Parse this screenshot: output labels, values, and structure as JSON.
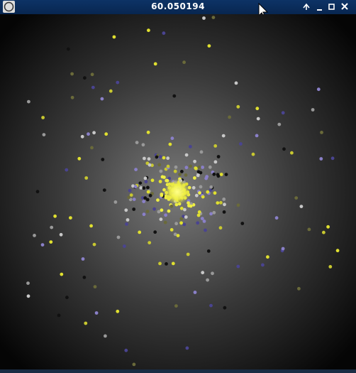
{
  "window": {
    "title": "60.050194"
  }
}
